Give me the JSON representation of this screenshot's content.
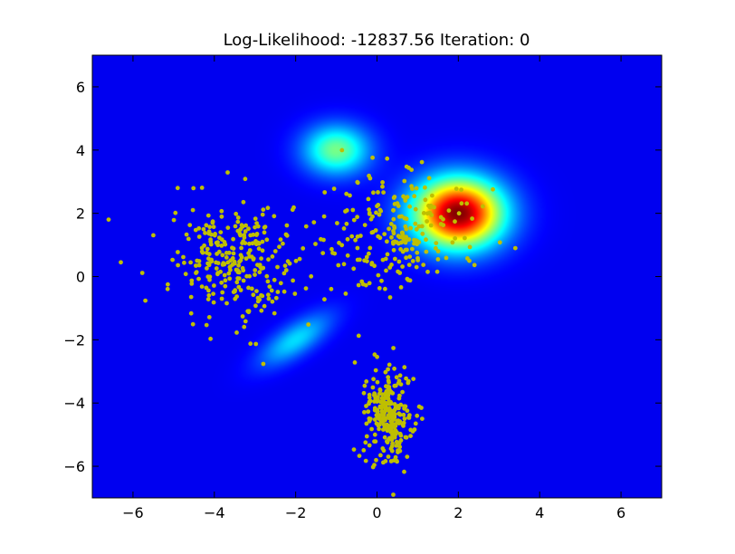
{
  "chart_data": {
    "type": "scatter",
    "title": "Log-Likelihood:  -12837.56  Iteration:  0",
    "xlabel": "",
    "ylabel": "",
    "xlim": [
      -7,
      7
    ],
    "ylim": [
      -7,
      7
    ],
    "xticks": [
      -6,
      -4,
      -2,
      0,
      2,
      4,
      6
    ],
    "yticks": [
      -6,
      -4,
      -2,
      0,
      2,
      4,
      6
    ],
    "xtick_labels": [
      "−6",
      "−4",
      "−2",
      "0",
      "2",
      "4",
      "6"
    ],
    "ytick_labels": [
      "−6",
      "−4",
      "−2",
      "0",
      "2",
      "4",
      "6"
    ],
    "grid": false,
    "background": "#00008f",
    "colormap": "jet",
    "point_color": "#bfbf00",
    "series": [
      {
        "clusters": [
          {
            "center": [
              -3.5,
              0.5
            ],
            "std": [
              0.75,
              0.9
            ],
            "rho": 0.0,
            "count": 280
          },
          {
            "center": [
              0.5,
              1.3
            ],
            "std": [
              0.85,
              0.9
            ],
            "rho": 0.1,
            "count": 230
          },
          {
            "center": [
              0.3,
              -4.3
            ],
            "std": [
              0.32,
              0.75
            ],
            "rho": 0.0,
            "count": 270
          }
        ],
        "outliers": [
          [
            -6.6,
            1.8
          ],
          [
            -6.3,
            0.45
          ],
          [
            -4.9,
            2.8
          ],
          [
            3.4,
            0.9
          ],
          [
            0.4,
            -6.9
          ],
          [
            -1.3,
            1.9
          ]
        ]
      }
    ],
    "heatmap_components": [
      {
        "mean": [
          -1.0,
          4.0
        ],
        "cov": [
          [
            0.33,
            0.0
          ],
          [
            0.0,
            0.31
          ]
        ],
        "weight": 0.9
      },
      {
        "mean": [
          2.0,
          2.0
        ],
        "cov": [
          [
            0.6,
            0.0
          ],
          [
            0.0,
            0.6
          ]
        ],
        "weight": 2.1
      },
      {
        "mean": [
          -2.0,
          -2.0
        ],
        "cov": [
          [
            0.38,
            0.26
          ],
          [
            0.26,
            0.35
          ]
        ],
        "weight": 0.55
      }
    ]
  }
}
